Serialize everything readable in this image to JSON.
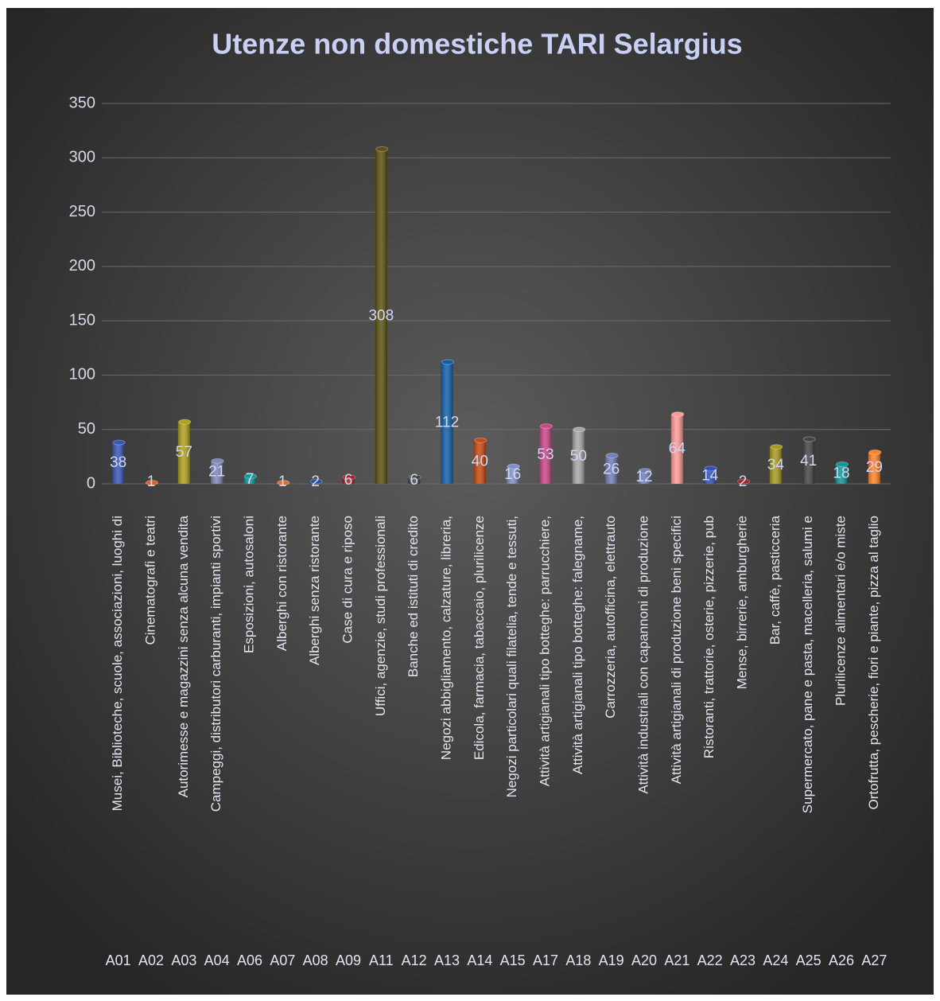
{
  "chart_data": {
    "type": "bar",
    "title": "Utenze non domestiche TARI Selargius",
    "categories": [
      "A01",
      "A02",
      "A03",
      "A04",
      "A06",
      "A07",
      "A08",
      "A09",
      "A11",
      "A12",
      "A13",
      "A14",
      "A15",
      "A17",
      "A18",
      "A19",
      "A20",
      "A21",
      "A22",
      "A23",
      "A24",
      "A25",
      "A26",
      "A27"
    ],
    "descriptions": [
      "Musei, Biblioteche, scuole, associazioni, luoghi di",
      "Cinematografi e teatri",
      "Autorimesse e magazzini senza alcuna vendita",
      "Campeggi, distributori carburanti, impianti sportivi",
      "Esposizioni, autosaloni",
      "Alberghi con ristorante",
      "Alberghi senza ristorante",
      "Case di cura e riposo",
      "Uffici, agenzie, studi professionali",
      "Banche ed istituti di credito",
      "Negozi abbigliamento, calzature, libreria,",
      "Edicola, farmacia, tabaccaio, plurilicenze",
      "Negozi particolari quali filatelia, tende e tessuti,",
      "Attività artigianali tipo botteghe: parrucchiere,",
      "Attività artigianali tipo botteghe: falegname,",
      "Carrozzeria, autofficina, elettrauto",
      "Attività industriali con capannoni di produzione",
      "Attività artigianali di produzione beni specifici",
      "Ristoranti, trattorie, osterie, pizzerie, pub",
      "Mense, birrerie, amburgherie",
      "Bar, caffè, pasticceria",
      "Supermercato, pane e pasta, macelleria, salumi e",
      "Plurilicenze alimentari e/o miste",
      "Ortofrutta, pescherie, fiori e piante, pizza al taglio"
    ],
    "values": [
      38,
      1,
      57,
      21,
      7,
      1,
      2,
      6,
      308,
      6,
      112,
      40,
      16,
      53,
      50,
      26,
      12,
      64,
      14,
      2,
      34,
      41,
      18,
      29
    ],
    "colors": [
      "#3a55b8",
      "#e06020",
      "#b0a020",
      "#8088b8",
      "#109898",
      "#e07030",
      "#2050a0",
      "#a82020",
      "#5a5212",
      "#454545",
      "#1060a8",
      "#c84a10",
      "#8090c8",
      "#c84888",
      "#a8a8a8",
      "#7080b8",
      "#7080b8",
      "#ff9a9a",
      "#3050b8",
      "#a82020",
      "#a89a20",
      "#454545",
      "#109898",
      "#ff8428"
    ],
    "ylim": [
      0,
      350
    ],
    "yticks": [
      0,
      50,
      100,
      150,
      200,
      250,
      300,
      350
    ],
    "grid": true
  }
}
